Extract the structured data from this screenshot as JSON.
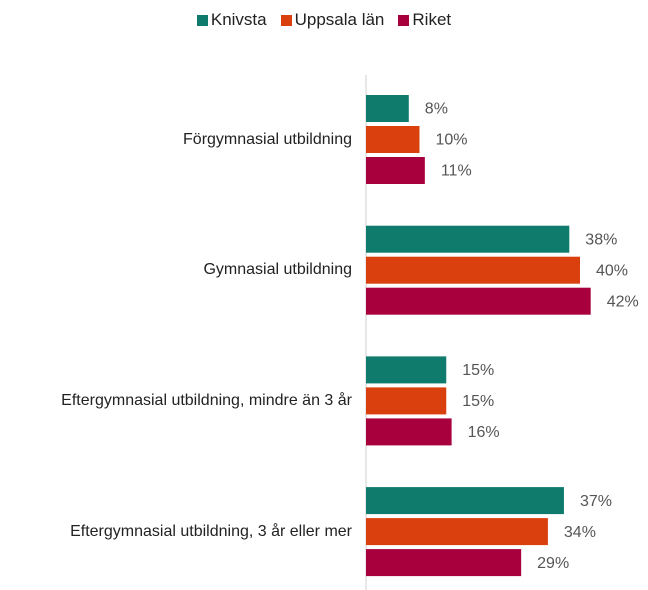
{
  "chart_data": {
    "type": "hbar",
    "categories": [
      "Förgymnasial utbildning",
      "Gymnasial utbildning",
      "Eftergymnasial utbildning, mindre än 3 år",
      "Eftergymnasial utbildning, 3 år eller mer"
    ],
    "series": [
      {
        "name": "Knivsta",
        "color": "#0f7b6c",
        "values": [
          8,
          38,
          15,
          37
        ],
        "value_labels": [
          "8%",
          "38%",
          "15%",
          "37%"
        ]
      },
      {
        "name": "Uppsala län",
        "color": "#d9400e",
        "values": [
          10,
          40,
          15,
          34
        ],
        "value_labels": [
          "10%",
          "40%",
          "15%",
          "34%"
        ]
      },
      {
        "name": "Riket",
        "color": "#a8003c",
        "values": [
          11,
          42,
          16,
          29
        ],
        "value_labels": [
          "11%",
          "42%",
          "16%",
          "29%"
        ]
      }
    ],
    "legend": "top"
  }
}
